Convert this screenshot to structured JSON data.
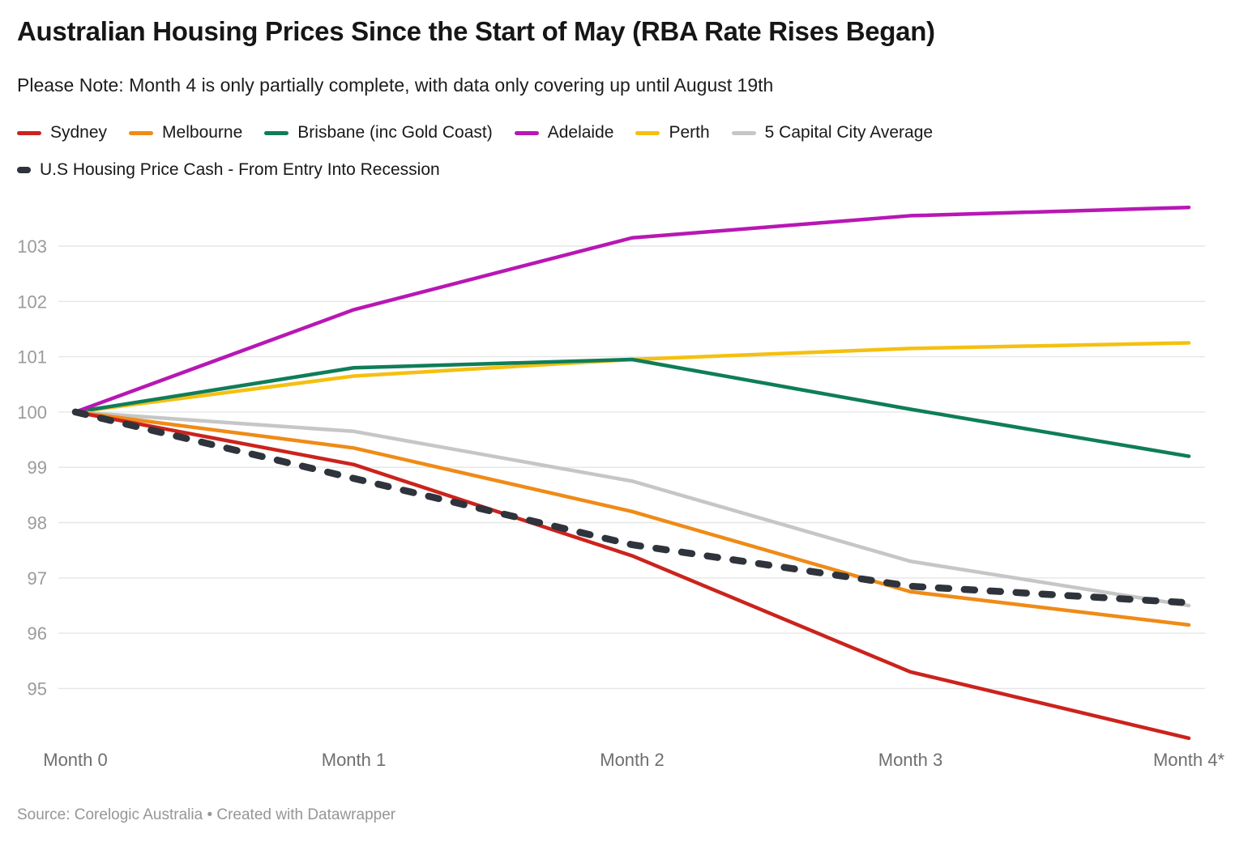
{
  "header": {
    "title": "Australian Housing Prices Since the Start of May (RBA Rate Rises Began)",
    "subtitle": "Please Note: Month 4 is only partially complete, with data  only covering up until August 19th"
  },
  "legend": {
    "row1": [
      {
        "label": "Sydney",
        "color": "#cb231d"
      },
      {
        "label": "Melbourne",
        "color": "#ef8b17"
      },
      {
        "label": "Brisbane (inc Gold Coast)",
        "color": "#0f7d59"
      },
      {
        "label": "Adelaide",
        "color": "#b817b4"
      },
      {
        "label": "Perth",
        "color": "#f4c011"
      },
      {
        "label": "5 Capital City Average",
        "color": "#c6c6c6"
      }
    ],
    "row2": [
      {
        "label": "U.S Housing Price Cash - From Entry Into Recession",
        "color": "#2f333c"
      }
    ]
  },
  "chart_data": {
    "type": "line",
    "title": "Australian Housing Prices Since the Start of May (RBA Rate Rises Began)",
    "x": [
      "Month 0",
      "Month 1",
      "Month 2",
      "Month 3",
      "Month 4*"
    ],
    "series": [
      {
        "name": "Sydney",
        "color": "#cb231d",
        "dashed": false,
        "values": [
          100,
          99.05,
          97.4,
          95.3,
          94.1
        ]
      },
      {
        "name": "Melbourne",
        "color": "#ef8b17",
        "dashed": false,
        "values": [
          100,
          99.35,
          98.2,
          96.75,
          96.15
        ]
      },
      {
        "name": "Brisbane (inc Gold Coast)",
        "color": "#0f7d59",
        "dashed": false,
        "values": [
          100,
          100.8,
          100.95,
          100.05,
          99.2
        ]
      },
      {
        "name": "Adelaide",
        "color": "#b817b4",
        "dashed": false,
        "values": [
          100,
          101.85,
          103.15,
          103.55,
          103.7
        ]
      },
      {
        "name": "Perth",
        "color": "#f4c011",
        "dashed": false,
        "values": [
          100,
          100.65,
          100.95,
          101.15,
          101.25
        ]
      },
      {
        "name": "5 Capital City Average",
        "color": "#c6c6c6",
        "dashed": false,
        "values": [
          100,
          99.65,
          98.75,
          97.3,
          96.5
        ]
      },
      {
        "name": "U.S Housing Price Cash - From Entry Into Recession",
        "color": "#2f333c",
        "dashed": true,
        "values": [
          100,
          98.8,
          97.6,
          96.85,
          96.55
        ]
      }
    ],
    "y_ticks": [
      95,
      96,
      97,
      98,
      99,
      100,
      101,
      102,
      103
    ],
    "ylim": [
      93.95,
      103.9
    ],
    "grid": true,
    "legend_position": "top",
    "xlabel": "",
    "ylabel": ""
  },
  "footer": {
    "source": "Source: Corelogic Australia • Created with Datawrapper"
  }
}
